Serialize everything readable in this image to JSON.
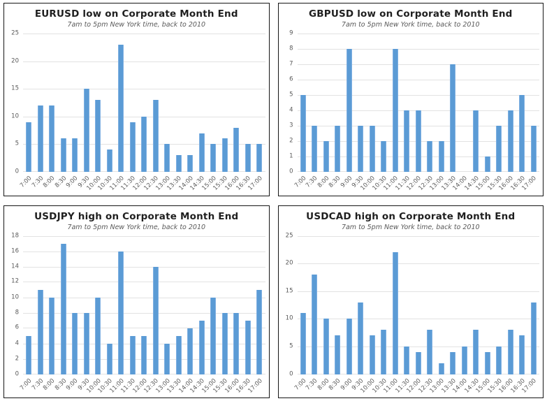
{
  "colors": {
    "bar": "#5b9bd5",
    "bar_edge": "#7fb0e2",
    "gridline": "#e2e2e2",
    "title": "#1f1f1f",
    "subtitle": "#595959",
    "tick_label": "#595959",
    "panel_border": "#161616",
    "background": "#ffffff"
  },
  "chart_data": [
    {
      "type": "bar",
      "title": "EURUSD low on Corporate Month End",
      "subtitle": "7am to 5pm New York time, back to 2010",
      "categories": [
        "7:00",
        "7:30",
        "8:00",
        "8:30",
        "9:00",
        "9:30",
        "10:00",
        "10:30",
        "11:00",
        "11:30",
        "12:00",
        "12:30",
        "13:00",
        "13:30",
        "14:00",
        "14:30",
        "15:00",
        "15:30",
        "16:00",
        "16:30",
        "17:00"
      ],
      "values": [
        9,
        12,
        12,
        6,
        6,
        15,
        13,
        4,
        23,
        9,
        10,
        13,
        5,
        3,
        3,
        7,
        5,
        6,
        8,
        5,
        5
      ],
      "xlabel": "",
      "ylabel": "",
      "ylim": [
        0,
        25
      ],
      "yticks": [
        0,
        5,
        10,
        15,
        20,
        25
      ],
      "grid": true,
      "legend": "none"
    },
    {
      "type": "bar",
      "title": "GBPUSD low on Corporate Month End",
      "subtitle": "7am to 5pm New York time, back to 2010",
      "categories": [
        "7:00",
        "7:30",
        "8:00",
        "8:30",
        "9:00",
        "9:30",
        "10:00",
        "10:30",
        "11:00",
        "11:30",
        "12:00",
        "12:30",
        "13:00",
        "13:30",
        "14:00",
        "14:30",
        "15:00",
        "15:30",
        "16:00",
        "16:30",
        "17:00"
      ],
      "values": [
        5,
        3,
        2,
        3,
        8,
        3,
        3,
        2,
        8,
        4,
        4,
        2,
        2,
        7,
        0,
        4,
        1,
        3,
        4,
        5,
        3
      ],
      "xlabel": "",
      "ylabel": "",
      "ylim": [
        0,
        9
      ],
      "yticks": [
        0,
        1,
        2,
        3,
        4,
        5,
        6,
        7,
        8,
        9
      ],
      "grid": true,
      "legend": "none"
    },
    {
      "type": "bar",
      "title": "USDJPY high on Corporate Month End",
      "subtitle": "7am to 5pm New York time, back to 2010",
      "categories": [
        "7:00",
        "7:30",
        "8:00",
        "8:30",
        "9:00",
        "9:30",
        "10:00",
        "10:30",
        "11:00",
        "11:30",
        "12:00",
        "12:30",
        "13:00",
        "13:30",
        "14:00",
        "14:30",
        "15:00",
        "15:30",
        "16:00",
        "16:30",
        "17:00"
      ],
      "values": [
        5,
        11,
        10,
        17,
        8,
        8,
        10,
        4,
        16,
        5,
        5,
        14,
        4,
        5,
        6,
        7,
        10,
        8,
        8,
        7,
        11
      ],
      "xlabel": "",
      "ylabel": "",
      "ylim": [
        0,
        18
      ],
      "yticks": [
        0,
        2,
        4,
        6,
        8,
        10,
        12,
        14,
        16,
        18
      ],
      "grid": true,
      "legend": "none"
    },
    {
      "type": "bar",
      "title": "USDCAD high on Corporate Month End",
      "subtitle": "7am to 5pm New York time, back to 2010",
      "categories": [
        "7:00",
        "7:30",
        "8:00",
        "8:30",
        "9:00",
        "9:30",
        "10:00",
        "10:30",
        "11:00",
        "11:30",
        "12:00",
        "12:30",
        "13:00",
        "13:30",
        "14:00",
        "14:30",
        "15:00",
        "15:30",
        "16:00",
        "16:30",
        "17:00"
      ],
      "values": [
        11,
        18,
        10,
        7,
        10,
        13,
        7,
        8,
        22,
        5,
        4,
        8,
        2,
        4,
        5,
        8,
        4,
        5,
        8,
        7,
        13
      ],
      "xlabel": "",
      "ylabel": "",
      "ylim": [
        0,
        25
      ],
      "yticks": [
        0,
        5,
        10,
        15,
        20,
        25
      ],
      "grid": true,
      "legend": "none"
    }
  ]
}
